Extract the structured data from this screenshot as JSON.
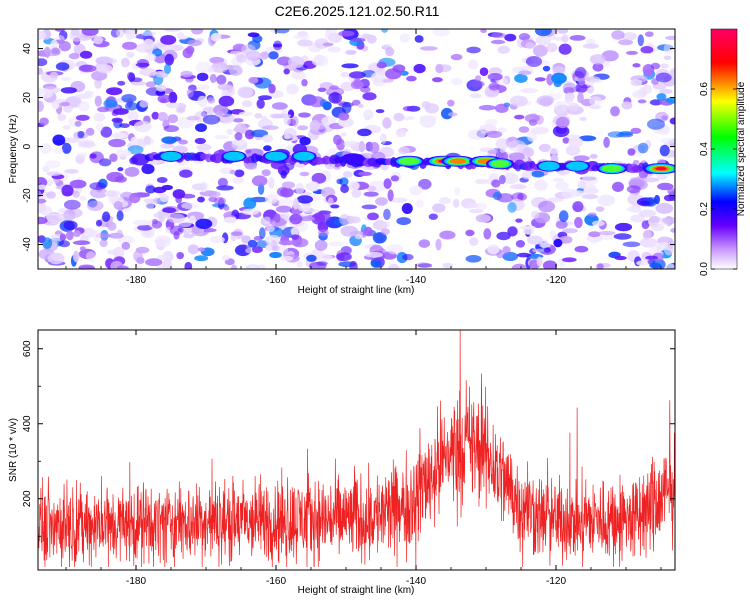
{
  "title": "C2E6.2025.121.02.50.R11",
  "chart_data": [
    {
      "type": "heatmap",
      "panel": "spectrogram",
      "title": "C2E6.2025.121.02.50.R11",
      "xlabel": "Height of straight line (km)",
      "ylabel": "Frequency (Hz)",
      "xlim": [
        -194,
        -103
      ],
      "ylim": [
        -50,
        48
      ],
      "x_ticks": [
        -180,
        -160,
        -140,
        -120
      ],
      "y_ticks": [
        -40,
        -20,
        0,
        20,
        40
      ],
      "grid": false,
      "colorbar": {
        "label": "Normalized spectral amplitude",
        "range": [
          0.0,
          0.8
        ],
        "ticks": [
          0.0,
          0.2,
          0.4,
          0.6
        ],
        "colors": [
          "#ffffff",
          "#cc99ff",
          "#6600ff",
          "#0000ff",
          "#00ffff",
          "#00ff00",
          "#ffff00",
          "#ff0000",
          "#ff0066"
        ]
      },
      "dominant_ridge": {
        "frequency_hz": -5,
        "x_start": -178,
        "x_end": -104,
        "peaks": [
          {
            "x": -175,
            "f": -4,
            "amp": 0.3
          },
          {
            "x": -166,
            "f": -4,
            "amp": 0.3
          },
          {
            "x": -160,
            "f": -4,
            "amp": 0.35
          },
          {
            "x": -156,
            "f": -4,
            "amp": 0.3
          },
          {
            "x": -149,
            "f": -5,
            "amp": 0.25
          },
          {
            "x": -141,
            "f": -6,
            "amp": 0.5
          },
          {
            "x": -136,
            "f": -6,
            "amp": 0.7
          },
          {
            "x": -134,
            "f": -6,
            "amp": 0.6
          },
          {
            "x": -130,
            "f": -6,
            "amp": 0.6
          },
          {
            "x": -128,
            "f": -7,
            "amp": 0.4
          },
          {
            "x": -121,
            "f": -8,
            "amp": 0.3
          },
          {
            "x": -117,
            "f": -8,
            "amp": 0.35
          },
          {
            "x": -112,
            "f": -9,
            "amp": 0.5
          },
          {
            "x": -105,
            "f": -9,
            "amp": 0.7
          }
        ]
      }
    },
    {
      "type": "line",
      "panel": "snr",
      "xlabel": "Height of straight line (km)",
      "ylabel": "SNR (10 * v/v)",
      "xlim": [
        -194,
        -103
      ],
      "ylim": [
        10,
        650
      ],
      "x_ticks": [
        -180,
        -160,
        -140,
        -120
      ],
      "y_ticks": [
        200,
        400,
        600
      ],
      "grid": false,
      "series": [
        {
          "color": "#ee2222",
          "envelope": {
            "x": [
              -194,
              -185,
              -175,
              -165,
              -155,
              -148,
              -142,
              -138,
              -135,
              -133,
              -130,
              -127,
              -125,
              -122,
              -118,
              -112,
              -108,
              -105,
              -103
            ],
            "mean": [
              130,
              130,
              135,
              140,
              145,
              150,
              170,
              260,
              330,
              350,
              320,
              240,
              180,
              150,
              140,
              145,
              150,
              200,
              230
            ],
            "spread": [
              110,
              110,
              115,
              120,
              125,
              125,
              135,
              150,
              160,
              170,
              160,
              140,
              125,
              120,
              115,
              120,
              125,
              150,
              160
            ]
          }
        }
      ]
    }
  ]
}
